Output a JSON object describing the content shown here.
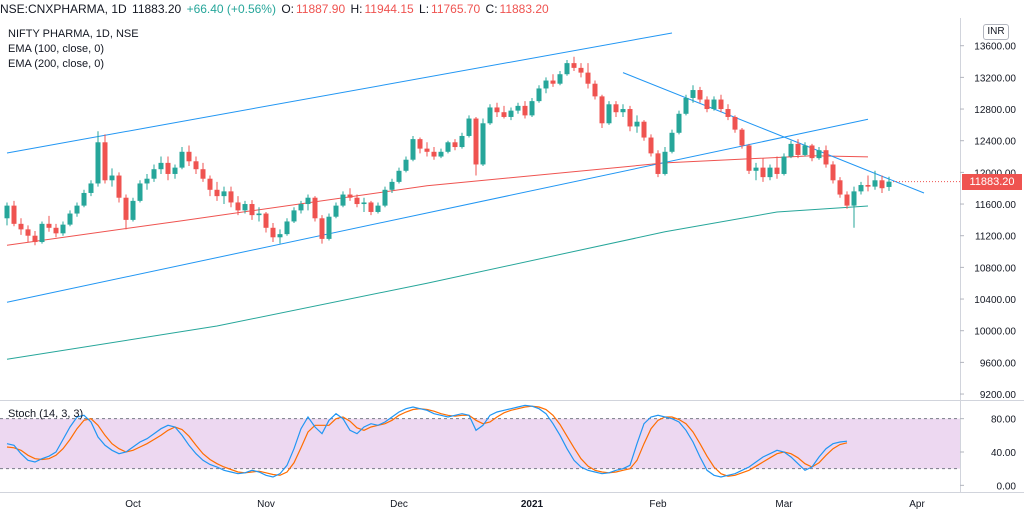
{
  "header": {
    "symbol": "NSE:CNXPHARMA, 1D",
    "last": "11883.20",
    "change": "+66.40 (+0.56%)",
    "open_label": "O:",
    "open": "11887.90",
    "high_label": "H:",
    "high": "11944.15",
    "low_label": "L:",
    "low": "11765.70",
    "close_label": "C:",
    "close": "11883.20"
  },
  "legend": {
    "title": "NIFTY PHARMA, 1D, NSE",
    "ema100": "EMA (100, close, 0)",
    "ema200": "EMA (200, close, 0)"
  },
  "currency": "INR",
  "price_tag": "11883.20",
  "indicator": {
    "label": "Stoch (14, 3, 3)"
  },
  "colors": {
    "up": "#26a69a",
    "down": "#ef5350",
    "ema100": "#ef5350",
    "ema200": "#26a69a",
    "trendline": "#2196f3",
    "stoch_k": "#2196f3",
    "stoch_d": "#ff6d00",
    "stoch_band": "#e1bee7"
  },
  "chart_data": [
    {
      "type": "candlestick",
      "title": "NIFTY PHARMA, 1D, NSE",
      "y_ticks": [
        "13600.00",
        "13200.00",
        "12800.00",
        "12400.00",
        "12000.00",
        "11600.00",
        "11200.00",
        "10800.00",
        "10400.00",
        "10000.00",
        "9600.00",
        "9200.00"
      ],
      "x_ticks": [
        "Oct",
        "Nov",
        "Dec",
        "2021",
        "Feb",
        "Mar",
        "Apr"
      ],
      "ylim": [
        9150,
        13950
      ],
      "candles": [
        [
          11420,
          11620,
          11330,
          11580
        ],
        [
          11580,
          11640,
          11320,
          11350
        ],
        [
          11350,
          11420,
          11210,
          11280
        ],
        [
          11280,
          11330,
          11120,
          11200
        ],
        [
          11200,
          11260,
          11080,
          11120
        ],
        [
          11120,
          11380,
          11100,
          11350
        ],
        [
          11350,
          11450,
          11250,
          11300
        ],
        [
          11300,
          11350,
          11180,
          11230
        ],
        [
          11230,
          11380,
          11200,
          11340
        ],
        [
          11340,
          11520,
          11320,
          11480
        ],
        [
          11480,
          11620,
          11440,
          11580
        ],
        [
          11580,
          11780,
          11560,
          11740
        ],
        [
          11740,
          11900,
          11700,
          11860
        ],
        [
          11860,
          12520,
          11820,
          12380
        ],
        [
          12380,
          12480,
          11860,
          11900
        ],
        [
          11900,
          12050,
          11820,
          11960
        ],
        [
          11960,
          12000,
          11620,
          11680
        ],
        [
          11680,
          11720,
          11280,
          11400
        ],
        [
          11400,
          11680,
          11380,
          11640
        ],
        [
          11640,
          11900,
          11620,
          11860
        ],
        [
          11860,
          11980,
          11780,
          11920
        ],
        [
          11920,
          12100,
          11880,
          12040
        ],
        [
          12040,
          12200,
          11980,
          12120
        ],
        [
          12120,
          12200,
          11900,
          11980
        ],
        [
          11980,
          12100,
          11920,
          12060
        ],
        [
          12060,
          12320,
          12040,
          12260
        ],
        [
          12260,
          12340,
          12080,
          12140
        ],
        [
          12140,
          12200,
          11980,
          12040
        ],
        [
          12040,
          12120,
          11880,
          11920
        ],
        [
          11920,
          11960,
          11700,
          11780
        ],
        [
          11780,
          11880,
          11640,
          11700
        ],
        [
          11700,
          11820,
          11600,
          11760
        ],
        [
          11760,
          11820,
          11560,
          11620
        ],
        [
          11620,
          11700,
          11460,
          11520
        ],
        [
          11520,
          11640,
          11480,
          11600
        ],
        [
          11600,
          11650,
          11400,
          11460
        ],
        [
          11460,
          11560,
          11380,
          11480
        ],
        [
          11480,
          11500,
          11240,
          11300
        ],
        [
          11300,
          11360,
          11120,
          11180
        ],
        [
          11180,
          11280,
          11100,
          11220
        ],
        [
          11220,
          11420,
          11200,
          11380
        ],
        [
          11380,
          11560,
          11360,
          11520
        ],
        [
          11520,
          11640,
          11480,
          11600
        ],
        [
          11600,
          11720,
          11520,
          11680
        ],
        [
          11680,
          11700,
          11380,
          11420
        ],
        [
          11420,
          11460,
          11100,
          11160
        ],
        [
          11160,
          11480,
          11140,
          11440
        ],
        [
          11440,
          11620,
          11420,
          11580
        ],
        [
          11580,
          11760,
          11560,
          11720
        ],
        [
          11720,
          11800,
          11640,
          11680
        ],
        [
          11680,
          11720,
          11560,
          11600
        ],
        [
          11600,
          11680,
          11500,
          11620
        ],
        [
          11620,
          11640,
          11460,
          11500
        ],
        [
          11500,
          11620,
          11480,
          11580
        ],
        [
          11580,
          11820,
          11560,
          11780
        ],
        [
          11780,
          11920,
          11740,
          11880
        ],
        [
          11880,
          12060,
          11860,
          12020
        ],
        [
          12020,
          12200,
          12000,
          12160
        ],
        [
          12160,
          12460,
          12140,
          12420
        ],
        [
          12420,
          12440,
          12240,
          12300
        ],
        [
          12300,
          12380,
          12200,
          12260
        ],
        [
          12260,
          12320,
          12160,
          12200
        ],
        [
          12200,
          12300,
          12180,
          12260
        ],
        [
          12260,
          12400,
          12240,
          12380
        ],
        [
          12380,
          12420,
          12280,
          12320
        ],
        [
          12320,
          12500,
          12300,
          12460
        ],
        [
          12460,
          12720,
          12440,
          12680
        ],
        [
          12680,
          12700,
          11960,
          12100
        ],
        [
          12100,
          12680,
          12080,
          12620
        ],
        [
          12620,
          12860,
          12600,
          12820
        ],
        [
          12820,
          12880,
          12700,
          12760
        ],
        [
          12760,
          12840,
          12680,
          12700
        ],
        [
          12700,
          12820,
          12660,
          12780
        ],
        [
          12780,
          12880,
          12740,
          12840
        ],
        [
          12840,
          12900,
          12680,
          12720
        ],
        [
          12720,
          12940,
          12700,
          12900
        ],
        [
          12900,
          13100,
          12880,
          13060
        ],
        [
          13060,
          13200,
          13000,
          13160
        ],
        [
          13160,
          13240,
          13080,
          13120
        ],
        [
          13120,
          13280,
          13100,
          13240
        ],
        [
          13240,
          13420,
          13220,
          13380
        ],
        [
          13380,
          13460,
          13280,
          13320
        ],
        [
          13320,
          13380,
          13200,
          13260
        ],
        [
          13260,
          13380,
          13060,
          13120
        ],
        [
          13120,
          13160,
          12920,
          12960
        ],
        [
          12960,
          12980,
          12560,
          12620
        ],
        [
          12620,
          12900,
          12600,
          12860
        ],
        [
          12860,
          12900,
          12700,
          12760
        ],
        [
          12760,
          12860,
          12700,
          12800
        ],
        [
          12800,
          12840,
          12520,
          12580
        ],
        [
          12580,
          12720,
          12500,
          12640
        ],
        [
          12640,
          12660,
          12400,
          12440
        ],
        [
          12440,
          12480,
          12200,
          12240
        ],
        [
          12240,
          12280,
          11940,
          11980
        ],
        [
          11980,
          12320,
          11960,
          12260
        ],
        [
          12260,
          12540,
          12240,
          12500
        ],
        [
          12500,
          12780,
          12480,
          12740
        ],
        [
          12740,
          12980,
          12720,
          12940
        ],
        [
          12940,
          13100,
          12880,
          13040
        ],
        [
          13040,
          13080,
          12880,
          12920
        ],
        [
          12920,
          12960,
          12760,
          12800
        ],
        [
          12800,
          12960,
          12780,
          12920
        ],
        [
          12920,
          12980,
          12760,
          12800
        ],
        [
          12800,
          12860,
          12660,
          12700
        ],
        [
          12700,
          12720,
          12500,
          12540
        ],
        [
          12540,
          12560,
          12300,
          12340
        ],
        [
          12340,
          12360,
          11980,
          12020
        ],
        [
          12020,
          12120,
          11900,
          12060
        ],
        [
          12060,
          12180,
          11880,
          11940
        ],
        [
          11940,
          12100,
          11900,
          12060
        ],
        [
          12060,
          12200,
          11920,
          11980
        ],
        [
          11980,
          12240,
          11960,
          12200
        ],
        [
          12200,
          12400,
          12180,
          12360
        ],
        [
          12360,
          12420,
          12180,
          12220
        ],
        [
          12220,
          12380,
          12200,
          12340
        ],
        [
          12340,
          12360,
          12140,
          12180
        ],
        [
          12180,
          12320,
          12160,
          12280
        ],
        [
          12280,
          12340,
          12060,
          12100
        ],
        [
          12100,
          12140,
          11860,
          11900
        ],
        [
          11900,
          11940,
          11680,
          11720
        ],
        [
          11720,
          11760,
          11540,
          11580
        ],
        [
          11580,
          11820,
          11300,
          11760
        ],
        [
          11760,
          11880,
          11720,
          11840
        ],
        [
          11840,
          11960,
          11760,
          11820
        ],
        [
          11820,
          12020,
          11780,
          11900
        ],
        [
          11900,
          11960,
          11740,
          11800
        ],
        [
          11816,
          11944,
          11766,
          11883
        ]
      ],
      "ema100": [
        [
          0,
          11080
        ],
        [
          25,
          11390
        ],
        [
          60,
          11830
        ],
        [
          94,
          12120
        ],
        [
          115,
          12210
        ],
        [
          123,
          12195
        ]
      ],
      "ema200": [
        [
          0,
          9640
        ],
        [
          30,
          10060
        ],
        [
          60,
          10600
        ],
        [
          94,
          11250
        ],
        [
          110,
          11500
        ],
        [
          123,
          11575
        ]
      ],
      "trendlines": [
        [
          [
            0,
            12245
          ],
          [
            95,
            13760
          ]
        ],
        [
          [
            0,
            10360
          ],
          [
            123,
            12670
          ]
        ],
        [
          [
            88,
            13260
          ],
          [
            131,
            11740
          ]
        ]
      ],
      "last_price": 11883.2
    },
    {
      "type": "line",
      "title": "Stoch (14, 3, 3)",
      "y_ticks": [
        "80.00",
        "40.00",
        "0.00"
      ],
      "ylim": [
        -8,
        100
      ],
      "band": [
        20,
        80
      ],
      "k": [
        50,
        48,
        38,
        30,
        28,
        32,
        35,
        40,
        55,
        70,
        82,
        84,
        76,
        58,
        48,
        42,
        38,
        40,
        46,
        52,
        56,
        62,
        68,
        72,
        70,
        60,
        48,
        38,
        30,
        25,
        22,
        18,
        16,
        14,
        15,
        18,
        16,
        12,
        10,
        14,
        24,
        44,
        68,
        82,
        70,
        62,
        78,
        86,
        80,
        66,
        62,
        70,
        74,
        72,
        76,
        82,
        88,
        92,
        94,
        92,
        90,
        86,
        84,
        82,
        84,
        86,
        84,
        66,
        72,
        84,
        88,
        90,
        92,
        94,
        96,
        95,
        92,
        86,
        74,
        60,
        44,
        30,
        22,
        18,
        16,
        14,
        15,
        18,
        20,
        24,
        50,
        74,
        82,
        84,
        82,
        80,
        76,
        66,
        52,
        34,
        18,
        12,
        10,
        12,
        14,
        18,
        22,
        28,
        34,
        38,
        42,
        40,
        34,
        26,
        18,
        22,
        34,
        44,
        50,
        52,
        53
      ],
      "d": [
        46,
        45,
        42,
        36,
        32,
        31,
        32,
        36,
        44,
        55,
        68,
        78,
        80,
        72,
        60,
        50,
        44,
        40,
        42,
        46,
        50,
        55,
        60,
        66,
        70,
        67,
        59,
        48,
        38,
        31,
        26,
        22,
        19,
        16,
        15,
        16,
        17,
        15,
        13,
        12,
        16,
        27,
        45,
        64,
        72,
        72,
        72,
        80,
        82,
        77,
        69,
        66,
        70,
        72,
        74,
        78,
        84,
        88,
        91,
        92,
        91,
        89,
        86,
        84,
        83,
        84,
        84,
        78,
        74,
        76,
        82,
        87,
        90,
        92,
        94,
        95,
        94,
        91,
        84,
        73,
        59,
        45,
        32,
        23,
        18,
        16,
        15,
        16,
        18,
        20,
        30,
        50,
        68,
        78,
        82,
        82,
        79,
        74,
        64,
        50,
        35,
        22,
        14,
        11,
        12,
        15,
        18,
        23,
        28,
        33,
        38,
        40,
        38,
        33,
        26,
        22,
        27,
        36,
        44,
        49,
        51
      ]
    }
  ]
}
